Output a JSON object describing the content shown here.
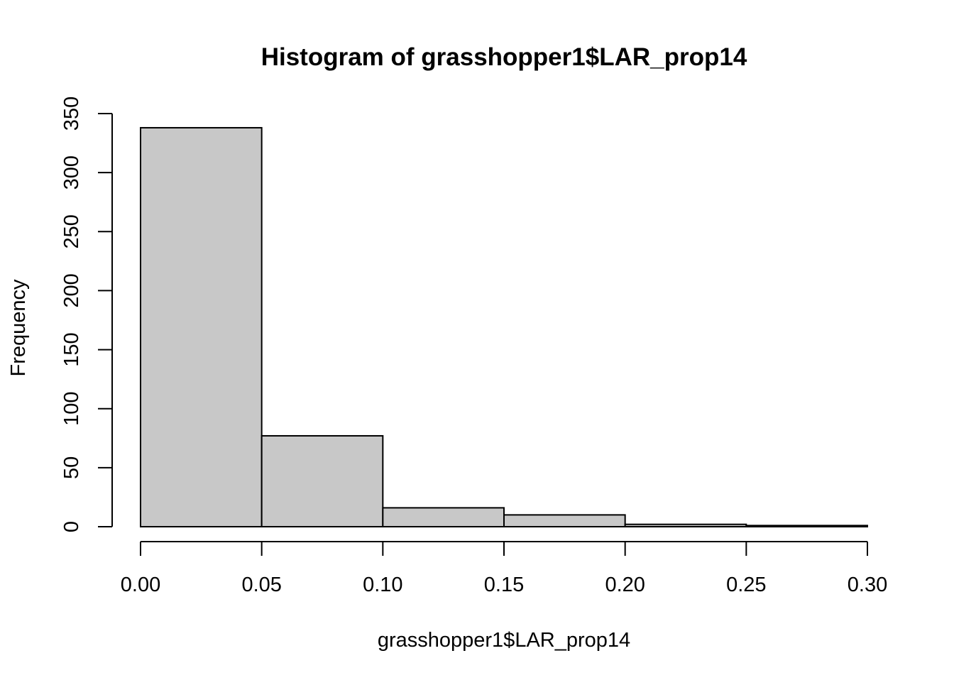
{
  "chart_data": {
    "type": "bar",
    "title": "Histogram of grasshopper1$LAR_prop14",
    "xlabel": "grasshopper1$LAR_prop14",
    "ylabel": "Frequency",
    "bins": [
      {
        "x0": 0.0,
        "x1": 0.05,
        "count": 338
      },
      {
        "x0": 0.05,
        "x1": 0.1,
        "count": 77
      },
      {
        "x0": 0.1,
        "x1": 0.15,
        "count": 16
      },
      {
        "x0": 0.15,
        "x1": 0.2,
        "count": 10
      },
      {
        "x0": 0.2,
        "x1": 0.25,
        "count": 2
      },
      {
        "x0": 0.25,
        "x1": 0.3,
        "count": 1
      }
    ],
    "xlim": [
      0,
      0.3
    ],
    "ylim": [
      0,
      350
    ],
    "x_ticks": [
      "0.00",
      "0.05",
      "0.10",
      "0.15",
      "0.20",
      "0.25",
      "0.30"
    ],
    "y_ticks": [
      "0",
      "50",
      "100",
      "150",
      "200",
      "250",
      "300",
      "350"
    ],
    "bar_fill": "#c8c8c8",
    "bar_stroke": "#000000",
    "grid": false,
    "legend": "none"
  }
}
